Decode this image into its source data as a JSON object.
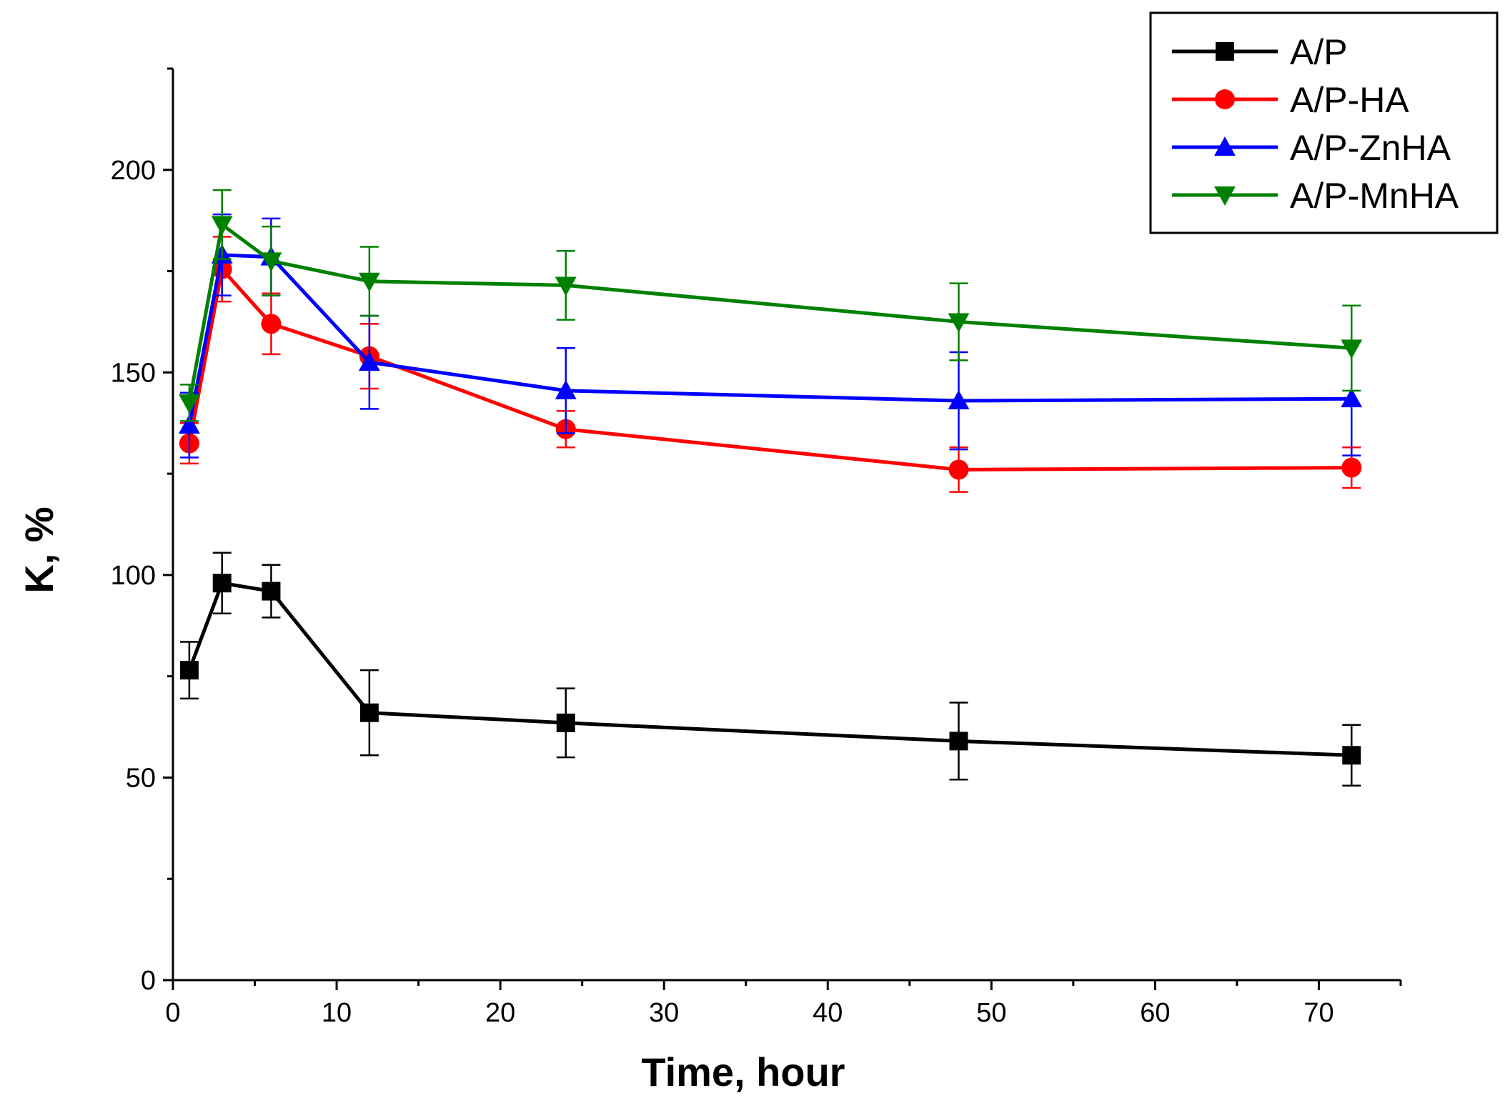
{
  "chart_data": {
    "type": "line",
    "title": "",
    "xlabel": "Time, hour",
    "ylabel": "K, %",
    "xlim": [
      0,
      75
    ],
    "ylim": [
      0,
      225
    ],
    "x_ticks": [
      0,
      10,
      20,
      30,
      40,
      50,
      60,
      70
    ],
    "x_tick_labels": [
      "0",
      "10",
      "20",
      "30",
      "40",
      "50",
      "60",
      "70"
    ],
    "y_ticks": [
      0,
      50,
      100,
      150,
      200
    ],
    "y_tick_labels": [
      "0",
      "50",
      "100",
      "150",
      "200"
    ],
    "grid": false,
    "legend_position": "top-right",
    "x": [
      1,
      3,
      6,
      12,
      24,
      48,
      72
    ],
    "series": [
      {
        "name": "A/P",
        "color": "#000000",
        "marker": "square",
        "values": [
          76.5,
          98,
          96,
          66,
          63.5,
          59,
          55.5
        ],
        "errors": [
          7,
          7.5,
          6.5,
          10.5,
          8.5,
          9.5,
          7.5
        ]
      },
      {
        "name": "A/P-HA",
        "color": "#ff0000",
        "marker": "circle",
        "values": [
          132.5,
          175.5,
          162,
          154,
          136,
          126,
          126.5
        ],
        "errors": [
          5,
          8,
          7.5,
          8,
          4.5,
          5.5,
          5
        ]
      },
      {
        "name": "A/P-ZnHA",
        "color": "#0000ff",
        "marker": "triangle-up",
        "values": [
          137,
          179,
          178.5,
          152.5,
          145.5,
          143,
          143.5
        ],
        "errors": [
          8,
          10,
          9.5,
          11.5,
          10.5,
          12,
          14
        ]
      },
      {
        "name": "A/P-MnHA",
        "color": "#008000",
        "marker": "triangle-down",
        "values": [
          142.5,
          186.5,
          177.5,
          172.5,
          171.5,
          162.5,
          156
        ],
        "errors": [
          4.5,
          8.5,
          8.5,
          8.5,
          8.5,
          9.5,
          10.5
        ]
      }
    ]
  }
}
